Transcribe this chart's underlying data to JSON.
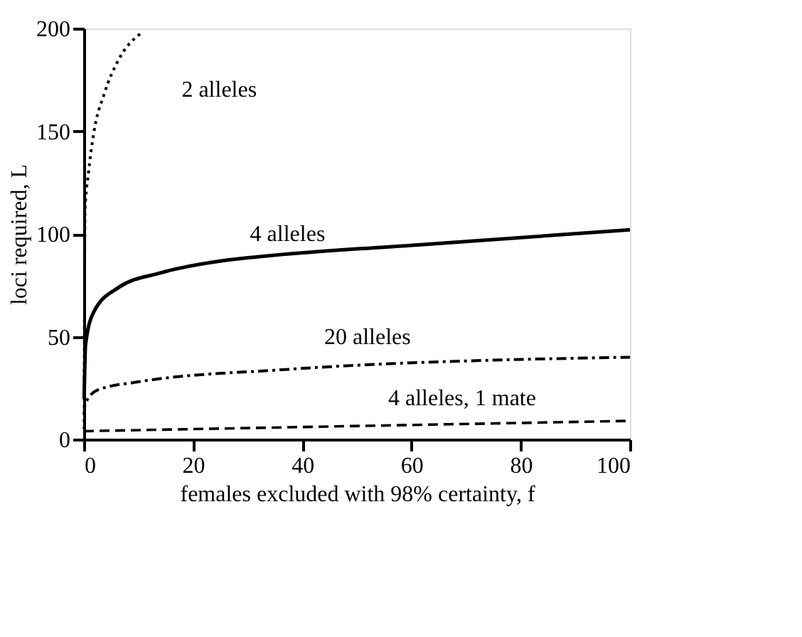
{
  "chart_data": {
    "type": "line",
    "xlabel": "females excluded with 98% certainty, f",
    "ylabel": "loci required, L",
    "xlim": [
      0,
      100
    ],
    "ylim": [
      0,
      200
    ],
    "xticks": [
      0,
      20,
      40,
      60,
      80,
      100
    ],
    "yticks": [
      0,
      50,
      100,
      150,
      200
    ],
    "grid": false,
    "legend": false,
    "series": [
      {
        "name": "2 alleles",
        "color": "#000000",
        "line_style": "dotted",
        "x": [
          0.05,
          0.2,
          0.85,
          1.8,
          3.7,
          6.4,
          10.6
        ],
        "values": [
          5,
          111,
          130,
          149,
          168,
          185,
          198
        ]
      },
      {
        "name": "4 alleles",
        "color": "#000000",
        "line_style": "solid",
        "x": [
          0.05,
          0.3,
          1.8,
          6.4,
          14,
          25.6,
          32.5,
          63,
          100
        ],
        "values": [
          20,
          46,
          62,
          74,
          81,
          87,
          89,
          95,
          102
        ]
      },
      {
        "name": "20 alleles",
        "color": "#000000",
        "line_style": "dashdot",
        "x": [
          0.05,
          0.2,
          2.5,
          10,
          37,
          100
        ],
        "values": [
          12,
          17,
          24,
          28,
          34,
          40
        ]
      },
      {
        "name": "4 alleles, 1 mate",
        "color": "#000000",
        "line_style": "dashed",
        "x": [
          0,
          30,
          60,
          100
        ],
        "values": [
          4,
          5.5,
          7,
          9
        ]
      }
    ]
  }
}
